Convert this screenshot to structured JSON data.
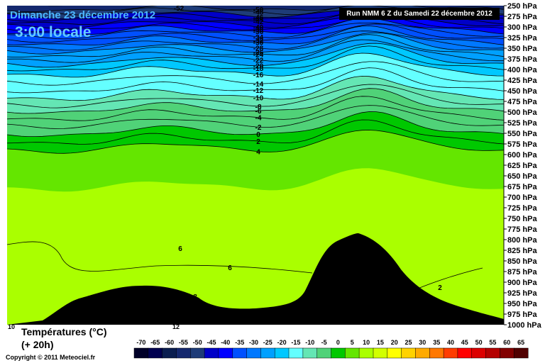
{
  "header": {
    "date": "Dimanche 23 décembre 2012",
    "time": "3:00 locale",
    "run": "Run NMM 6 Z du Samedi 22 décembre 2012"
  },
  "legend": {
    "title": "Températures (°C)",
    "subtitle": "(+ 20h)",
    "copyright": "Copyright © 2011 Meteociel.fr",
    "ticks": [
      "-70",
      "-65",
      "-60",
      "-55",
      "-50",
      "-45",
      "-40",
      "-35",
      "-30",
      "-25",
      "-20",
      "-15",
      "-10",
      "-5",
      "0",
      "5",
      "10",
      "15",
      "20",
      "25",
      "30",
      "35",
      "40",
      "45",
      "50",
      "55",
      "60",
      "65"
    ],
    "colors": [
      "#000028",
      "#000050",
      "#0a1e50",
      "#14286e",
      "#1e3c78",
      "#0000c8",
      "#0000ff",
      "#0050ff",
      "#0078ff",
      "#00a0ff",
      "#00c8ff",
      "#64ffff",
      "#64e6b4",
      "#50d278",
      "#00c800",
      "#64e600",
      "#aaff00",
      "#d2ff00",
      "#ffff00",
      "#ffd200",
      "#ffaa00",
      "#ff7800",
      "#ff3c00",
      "#ff0000",
      "#dc0000",
      "#b40000",
      "#820000",
      "#500000"
    ]
  },
  "chart_data": {
    "type": "heatmap",
    "title": "Températures (°C)",
    "y_axis": {
      "unit": "hPa",
      "ticks": [
        250,
        275,
        300,
        325,
        350,
        375,
        400,
        425,
        450,
        475,
        500,
        525,
        550,
        575,
        600,
        625,
        650,
        675,
        700,
        725,
        750,
        775,
        800,
        825,
        850,
        875,
        900,
        925,
        950,
        975,
        1000
      ],
      "tick_labels": [
        "250 hPa",
        "275 hPa",
        "300 hPa",
        "325 hPa",
        "350 hPa",
        "375 hPa",
        "400 hPa",
        "425 hPa",
        "450 hPa",
        "475 hPa",
        "500 hPa",
        "525 hPa",
        "550 hPa",
        "575 hPa",
        "600 hPa",
        "625 hPa",
        "650 hPa",
        "675 hPa",
        "700 hPa",
        "725 hPa",
        "750 hPa",
        "775 hPa",
        "800 hPa",
        "825 hPa",
        "850 hPa",
        "875 hPa",
        "900 hPa",
        "925 hPa",
        "950 hPa",
        "975 hPa",
        "1000 hPa"
      ],
      "range": [
        250,
        1000
      ],
      "inverted": true
    },
    "isotherm_labels": [
      "-52",
      "-50",
      "-48",
      "-46",
      "-44",
      "-42",
      "-40",
      "-38",
      "-36",
      "-34",
      "-32",
      "-30",
      "-28",
      "-26",
      "-24",
      "-22",
      "-20",
      "-18",
      "-16",
      "-14",
      "-12",
      "-10",
      "-8",
      "-6",
      "-4",
      "-2",
      "0",
      "2",
      "4",
      "6",
      "6",
      "8",
      "2"
    ],
    "isotherms_center": [
      {
        "t": -50,
        "p": 258
      },
      {
        "t": -48,
        "p": 265
      },
      {
        "t": -46,
        "p": 272
      },
      {
        "t": -44,
        "p": 280
      },
      {
        "t": -42,
        "p": 288
      },
      {
        "t": -40,
        "p": 296
      },
      {
        "t": -38,
        "p": 304
      },
      {
        "t": -36,
        "p": 312
      },
      {
        "t": -34,
        "p": 320
      },
      {
        "t": -32,
        "p": 329
      },
      {
        "t": -30,
        "p": 338
      },
      {
        "t": -28,
        "p": 347
      },
      {
        "t": -26,
        "p": 356
      },
      {
        "t": -24,
        "p": 366
      },
      {
        "t": -22,
        "p": 376
      },
      {
        "t": -20,
        "p": 387
      },
      {
        "t": -18,
        "p": 398
      },
      {
        "t": -16,
        "p": 411
      },
      {
        "t": -14,
        "p": 429
      },
      {
        "t": -12,
        "p": 449
      },
      {
        "t": -10,
        "p": 466
      },
      {
        "t": -8,
        "p": 482
      },
      {
        "t": -6,
        "p": 497
      },
      {
        "t": -4,
        "p": 514
      },
      {
        "t": -2,
        "p": 531
      },
      {
        "t": 0,
        "p": 551
      },
      {
        "t": 2,
        "p": 570
      },
      {
        "t": 4,
        "p": 589
      }
    ],
    "terrain_summit_p": 785,
    "x_labels": [
      "10",
      "12"
    ]
  }
}
